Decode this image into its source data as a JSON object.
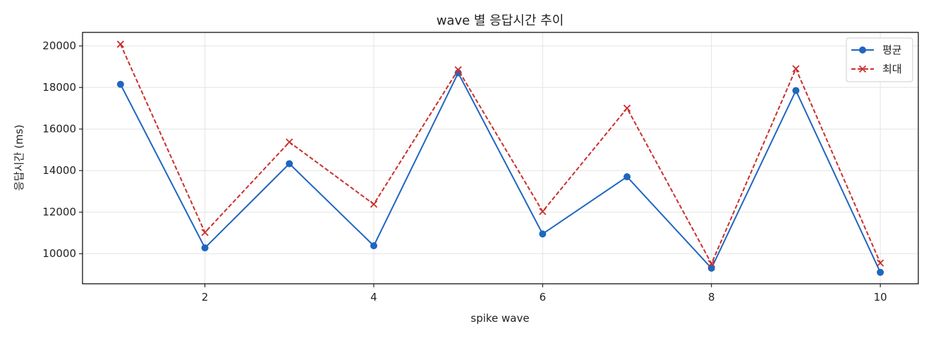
{
  "chart_data": {
    "type": "line",
    "title": "wave 별 응답시간 추이",
    "xlabel": "spike wave",
    "ylabel": "응답시간 (ms)",
    "x": [
      1,
      2,
      3,
      4,
      5,
      6,
      7,
      8,
      9,
      10
    ],
    "xticks": [
      2,
      4,
      6,
      8,
      10
    ],
    "yticks": [
      10000,
      12000,
      14000,
      16000,
      18000,
      20000
    ],
    "xlim": [
      0.55,
      10.45
    ],
    "ylim": [
      8550,
      20650
    ],
    "grid": true,
    "legend_position": "top-right",
    "series": [
      {
        "name": "평균",
        "color": "#1f66c0",
        "line_style": "solid",
        "marker": "circle",
        "values": [
          18150,
          10280,
          14330,
          10380,
          18700,
          10950,
          13700,
          9300,
          17850,
          9100
        ]
      },
      {
        "name": "최대",
        "color": "#c9302c",
        "line_style": "dashed",
        "marker": "x",
        "values": [
          20080,
          11020,
          15370,
          12380,
          18850,
          12030,
          17000,
          9520,
          18900,
          9550
        ]
      }
    ]
  }
}
